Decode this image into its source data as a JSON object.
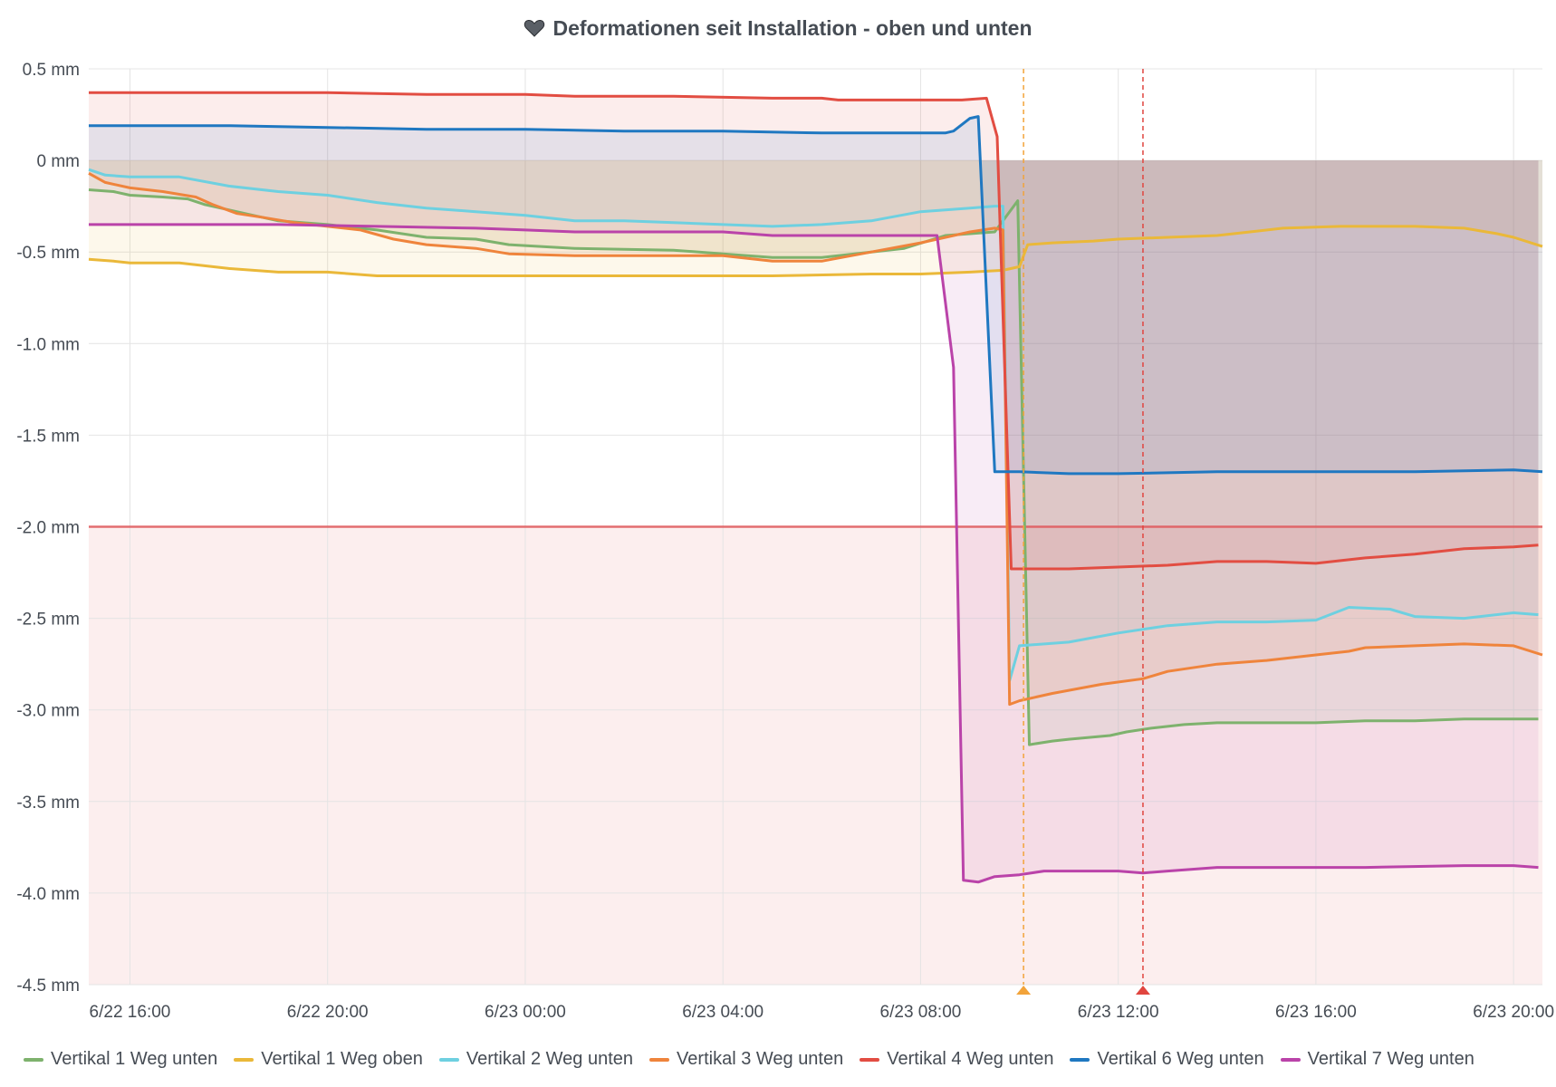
{
  "panel": {
    "title": "Deformationen seit Installation - oben und unten",
    "title_icon": "heart-icon"
  },
  "chart_data": {
    "type": "line",
    "y_unit": "mm",
    "ylim": [
      -4.5,
      0.5
    ],
    "yticks": [
      0.5,
      0,
      -0.5,
      -1.0,
      -1.5,
      -2.0,
      -2.5,
      -3.0,
      -3.5,
      -4.0,
      -4.5
    ],
    "ytick_labels": [
      "0.5 mm",
      "0 mm",
      "-0.5 mm",
      "-1.0 mm",
      "-1.5 mm",
      "-2.0 mm",
      "-2.5 mm",
      "-3.0 mm",
      "-3.5 mm",
      "-4.0 mm",
      "-4.5 mm"
    ],
    "xlim": [
      "2022-06-22T15:10",
      "2022-06-23T20:35"
    ],
    "xticks": [
      "2022-06-22T16:00",
      "2022-06-22T20:00",
      "2022-06-23T00:00",
      "2022-06-23T04:00",
      "2022-06-23T08:00",
      "2022-06-23T12:00",
      "2022-06-23T16:00",
      "2022-06-23T20:00"
    ],
    "xtick_labels": [
      "6/22 16:00",
      "6/22 20:00",
      "6/23 00:00",
      "6/23 04:00",
      "6/23 08:00",
      "6/23 12:00",
      "6/23 16:00",
      "6/23 20:00"
    ],
    "grid": true,
    "legend_position": "bottom",
    "threshold": {
      "value": -2.0,
      "color": "#e0585a"
    },
    "annotations": [
      {
        "time": "2022-06-23T10:05",
        "color": "#f2a33a"
      },
      {
        "time": "2022-06-23T12:30",
        "color": "#e0453f"
      }
    ],
    "series": [
      {
        "name": "Vertikal 1 Weg unten",
        "color": "#7eb26d",
        "points": [
          [
            "2022-06-22T15:10",
            -0.16
          ],
          [
            "2022-06-22T15:40",
            -0.17
          ],
          [
            "2022-06-22T16:00",
            -0.19
          ],
          [
            "2022-06-22T16:40",
            -0.2
          ],
          [
            "2022-06-22T17:10",
            -0.21
          ],
          [
            "2022-06-22T17:30",
            -0.24
          ],
          [
            "2022-06-22T18:00",
            -0.27
          ],
          [
            "2022-06-22T18:30",
            -0.3
          ],
          [
            "2022-06-22T19:00",
            -0.33
          ],
          [
            "2022-06-22T20:00",
            -0.35
          ],
          [
            "2022-06-22T21:00",
            -0.38
          ],
          [
            "2022-06-22T22:00",
            -0.42
          ],
          [
            "2022-06-22T23:00",
            -0.43
          ],
          [
            "2022-06-22T23:40",
            -0.46
          ],
          [
            "2022-06-23T01:00",
            -0.48
          ],
          [
            "2022-06-23T03:00",
            -0.49
          ],
          [
            "2022-06-23T04:00",
            -0.51
          ],
          [
            "2022-06-23T05:00",
            -0.53
          ],
          [
            "2022-06-23T06:00",
            -0.53
          ],
          [
            "2022-06-23T07:00",
            -0.5
          ],
          [
            "2022-06-23T07:40",
            -0.48
          ],
          [
            "2022-06-23T08:30",
            -0.41
          ],
          [
            "2022-06-23T09:30",
            -0.39
          ],
          [
            "2022-06-23T09:58",
            -0.22
          ],
          [
            "2022-06-23T10:12",
            -3.19
          ],
          [
            "2022-06-23T10:40",
            -3.17
          ],
          [
            "2022-06-23T11:00",
            -3.16
          ],
          [
            "2022-06-23T11:50",
            -3.14
          ],
          [
            "2022-06-23T12:10",
            -3.12
          ],
          [
            "2022-06-23T12:40",
            -3.1
          ],
          [
            "2022-06-23T13:20",
            -3.08
          ],
          [
            "2022-06-23T14:00",
            -3.07
          ],
          [
            "2022-06-23T15:00",
            -3.07
          ],
          [
            "2022-06-23T16:00",
            -3.07
          ],
          [
            "2022-06-23T17:00",
            -3.06
          ],
          [
            "2022-06-23T18:00",
            -3.06
          ],
          [
            "2022-06-23T19:00",
            -3.05
          ],
          [
            "2022-06-23T20:00",
            -3.05
          ],
          [
            "2022-06-23T20:30",
            -3.05
          ]
        ]
      },
      {
        "name": "Vertikal 1 Weg oben",
        "color": "#eab839",
        "points": [
          [
            "2022-06-22T15:10",
            -0.54
          ],
          [
            "2022-06-22T15:40",
            -0.55
          ],
          [
            "2022-06-22T16:00",
            -0.56
          ],
          [
            "2022-06-22T17:00",
            -0.56
          ],
          [
            "2022-06-22T18:00",
            -0.59
          ],
          [
            "2022-06-22T19:00",
            -0.61
          ],
          [
            "2022-06-22T20:00",
            -0.61
          ],
          [
            "2022-06-22T21:00",
            -0.63
          ],
          [
            "2022-06-22T23:00",
            -0.63
          ],
          [
            "2022-06-23T02:00",
            -0.63
          ],
          [
            "2022-06-23T05:00",
            -0.63
          ],
          [
            "2022-06-23T07:00",
            -0.62
          ],
          [
            "2022-06-23T08:00",
            -0.62
          ],
          [
            "2022-06-23T09:00",
            -0.61
          ],
          [
            "2022-06-23T09:40",
            -0.6
          ],
          [
            "2022-06-23T10:00",
            -0.58
          ],
          [
            "2022-06-23T10:10",
            -0.46
          ],
          [
            "2022-06-23T10:40",
            -0.45
          ],
          [
            "2022-06-23T11:30",
            -0.44
          ],
          [
            "2022-06-23T12:00",
            -0.43
          ],
          [
            "2022-06-23T13:00",
            -0.42
          ],
          [
            "2022-06-23T14:00",
            -0.41
          ],
          [
            "2022-06-23T14:40",
            -0.39
          ],
          [
            "2022-06-23T15:20",
            -0.37
          ],
          [
            "2022-06-23T16:30",
            -0.36
          ],
          [
            "2022-06-23T17:00",
            -0.36
          ],
          [
            "2022-06-23T18:00",
            -0.36
          ],
          [
            "2022-06-23T19:00",
            -0.37
          ],
          [
            "2022-06-23T19:40",
            -0.4
          ],
          [
            "2022-06-23T20:00",
            -0.42
          ],
          [
            "2022-06-23T20:35",
            -0.47
          ]
        ]
      },
      {
        "name": "Vertikal 2 Weg unten",
        "color": "#6ed0e0",
        "points": [
          [
            "2022-06-22T15:10",
            -0.05
          ],
          [
            "2022-06-22T15:30",
            -0.08
          ],
          [
            "2022-06-22T16:00",
            -0.09
          ],
          [
            "2022-06-22T17:00",
            -0.09
          ],
          [
            "2022-06-22T18:00",
            -0.14
          ],
          [
            "2022-06-22T19:00",
            -0.17
          ],
          [
            "2022-06-22T20:00",
            -0.19
          ],
          [
            "2022-06-22T21:00",
            -0.23
          ],
          [
            "2022-06-22T22:00",
            -0.26
          ],
          [
            "2022-06-22T23:00",
            -0.28
          ],
          [
            "2022-06-23T00:00",
            -0.3
          ],
          [
            "2022-06-23T01:00",
            -0.33
          ],
          [
            "2022-06-23T02:00",
            -0.33
          ],
          [
            "2022-06-23T03:00",
            -0.34
          ],
          [
            "2022-06-23T04:00",
            -0.35
          ],
          [
            "2022-06-23T05:00",
            -0.36
          ],
          [
            "2022-06-23T06:00",
            -0.35
          ],
          [
            "2022-06-23T07:00",
            -0.33
          ],
          [
            "2022-06-23T08:00",
            -0.28
          ],
          [
            "2022-06-23T09:00",
            -0.26
          ],
          [
            "2022-06-23T09:30",
            -0.25
          ],
          [
            "2022-06-23T09:40",
            -0.25
          ],
          [
            "2022-06-23T09:48",
            -2.84
          ],
          [
            "2022-06-23T10:00",
            -2.65
          ],
          [
            "2022-06-23T11:00",
            -2.63
          ],
          [
            "2022-06-23T12:00",
            -2.58
          ],
          [
            "2022-06-23T13:00",
            -2.54
          ],
          [
            "2022-06-23T14:00",
            -2.52
          ],
          [
            "2022-06-23T15:00",
            -2.52
          ],
          [
            "2022-06-23T16:00",
            -2.51
          ],
          [
            "2022-06-23T16:40",
            -2.44
          ],
          [
            "2022-06-23T17:30",
            -2.45
          ],
          [
            "2022-06-23T18:00",
            -2.49
          ],
          [
            "2022-06-23T19:00",
            -2.5
          ],
          [
            "2022-06-23T20:00",
            -2.47
          ],
          [
            "2022-06-23T20:30",
            -2.48
          ]
        ]
      },
      {
        "name": "Vertikal 3 Weg unten",
        "color": "#ef843c",
        "points": [
          [
            "2022-06-22T15:10",
            -0.07
          ],
          [
            "2022-06-22T15:30",
            -0.12
          ],
          [
            "2022-06-22T16:00",
            -0.15
          ],
          [
            "2022-06-22T16:40",
            -0.17
          ],
          [
            "2022-06-22T17:20",
            -0.2
          ],
          [
            "2022-06-22T17:40",
            -0.24
          ],
          [
            "2022-06-22T18:10",
            -0.29
          ],
          [
            "2022-06-22T18:40",
            -0.31
          ],
          [
            "2022-06-22T19:20",
            -0.34
          ],
          [
            "2022-06-22T20:00",
            -0.36
          ],
          [
            "2022-06-22T20:40",
            -0.38
          ],
          [
            "2022-06-22T21:20",
            -0.43
          ],
          [
            "2022-06-22T22:00",
            -0.46
          ],
          [
            "2022-06-22T23:00",
            -0.48
          ],
          [
            "2022-06-22T23:40",
            -0.51
          ],
          [
            "2022-06-23T01:00",
            -0.52
          ],
          [
            "2022-06-23T03:00",
            -0.52
          ],
          [
            "2022-06-23T04:00",
            -0.52
          ],
          [
            "2022-06-23T05:00",
            -0.55
          ],
          [
            "2022-06-23T06:00",
            -0.55
          ],
          [
            "2022-06-23T07:00",
            -0.5
          ],
          [
            "2022-06-23T08:00",
            -0.45
          ],
          [
            "2022-06-23T09:00",
            -0.39
          ],
          [
            "2022-06-23T09:30",
            -0.37
          ],
          [
            "2022-06-23T09:40",
            -0.38
          ],
          [
            "2022-06-23T09:48",
            -2.97
          ],
          [
            "2022-06-23T10:00",
            -2.95
          ],
          [
            "2022-06-23T10:40",
            -2.91
          ],
          [
            "2022-06-23T11:40",
            -2.86
          ],
          [
            "2022-06-23T12:30",
            -2.83
          ],
          [
            "2022-06-23T13:00",
            -2.79
          ],
          [
            "2022-06-23T14:00",
            -2.75
          ],
          [
            "2022-06-23T15:00",
            -2.73
          ],
          [
            "2022-06-23T16:00",
            -2.7
          ],
          [
            "2022-06-23T16:40",
            -2.68
          ],
          [
            "2022-06-23T17:00",
            -2.66
          ],
          [
            "2022-06-23T18:00",
            -2.65
          ],
          [
            "2022-06-23T19:00",
            -2.64
          ],
          [
            "2022-06-23T20:00",
            -2.65
          ],
          [
            "2022-06-23T20:35",
            -2.7
          ]
        ]
      },
      {
        "name": "Vertikal 4 Weg unten",
        "color": "#e24d42",
        "points": [
          [
            "2022-06-22T15:10",
            0.37
          ],
          [
            "2022-06-22T17:00",
            0.37
          ],
          [
            "2022-06-22T20:00",
            0.37
          ],
          [
            "2022-06-22T22:00",
            0.36
          ],
          [
            "2022-06-23T00:00",
            0.36
          ],
          [
            "2022-06-23T01:00",
            0.35
          ],
          [
            "2022-06-23T03:00",
            0.35
          ],
          [
            "2022-06-23T05:00",
            0.34
          ],
          [
            "2022-06-23T06:00",
            0.34
          ],
          [
            "2022-06-23T06:20",
            0.33
          ],
          [
            "2022-06-23T08:00",
            0.33
          ],
          [
            "2022-06-23T08:50",
            0.33
          ],
          [
            "2022-06-23T09:20",
            0.34
          ],
          [
            "2022-06-23T09:33",
            0.13
          ],
          [
            "2022-06-23T09:50",
            -2.23
          ],
          [
            "2022-06-23T11:00",
            -2.23
          ],
          [
            "2022-06-23T12:00",
            -2.22
          ],
          [
            "2022-06-23T13:00",
            -2.21
          ],
          [
            "2022-06-23T14:00",
            -2.19
          ],
          [
            "2022-06-23T15:00",
            -2.19
          ],
          [
            "2022-06-23T16:00",
            -2.2
          ],
          [
            "2022-06-23T17:00",
            -2.17
          ],
          [
            "2022-06-23T18:00",
            -2.15
          ],
          [
            "2022-06-23T19:00",
            -2.12
          ],
          [
            "2022-06-23T20:00",
            -2.11
          ],
          [
            "2022-06-23T20:30",
            -2.1
          ]
        ]
      },
      {
        "name": "Vertikal 6 Weg unten",
        "color": "#1f78c1",
        "points": [
          [
            "2022-06-22T15:10",
            0.19
          ],
          [
            "2022-06-22T16:00",
            0.19
          ],
          [
            "2022-06-22T18:00",
            0.19
          ],
          [
            "2022-06-22T20:00",
            0.18
          ],
          [
            "2022-06-22T22:00",
            0.17
          ],
          [
            "2022-06-23T00:00",
            0.17
          ],
          [
            "2022-06-23T02:00",
            0.16
          ],
          [
            "2022-06-23T04:00",
            0.16
          ],
          [
            "2022-06-23T06:00",
            0.15
          ],
          [
            "2022-06-23T08:00",
            0.15
          ],
          [
            "2022-06-23T08:30",
            0.15
          ],
          [
            "2022-06-23T08:40",
            0.16
          ],
          [
            "2022-06-23T09:00",
            0.23
          ],
          [
            "2022-06-23T09:10",
            0.24
          ],
          [
            "2022-06-23T09:30",
            -1.7
          ],
          [
            "2022-06-23T10:00",
            -1.7
          ],
          [
            "2022-06-23T11:00",
            -1.71
          ],
          [
            "2022-06-23T12:00",
            -1.71
          ],
          [
            "2022-06-23T14:00",
            -1.7
          ],
          [
            "2022-06-23T16:00",
            -1.7
          ],
          [
            "2022-06-23T18:00",
            -1.7
          ],
          [
            "2022-06-23T20:00",
            -1.69
          ],
          [
            "2022-06-23T20:35",
            -1.7
          ]
        ]
      },
      {
        "name": "Vertikal 7 Weg unten",
        "color": "#ba43a9",
        "points": [
          [
            "2022-06-22T15:10",
            -0.35
          ],
          [
            "2022-06-22T17:00",
            -0.35
          ],
          [
            "2022-06-22T19:00",
            -0.35
          ],
          [
            "2022-06-22T21:00",
            -0.36
          ],
          [
            "2022-06-22T23:00",
            -0.37
          ],
          [
            "2022-06-23T00:00",
            -0.38
          ],
          [
            "2022-06-23T01:00",
            -0.39
          ],
          [
            "2022-06-23T04:00",
            -0.39
          ],
          [
            "2022-06-23T05:00",
            -0.41
          ],
          [
            "2022-06-23T07:00",
            -0.41
          ],
          [
            "2022-06-23T08:00",
            -0.41
          ],
          [
            "2022-06-23T08:20",
            -0.41
          ],
          [
            "2022-06-23T08:40",
            -1.13
          ],
          [
            "2022-06-23T08:52",
            -3.93
          ],
          [
            "2022-06-23T09:10",
            -3.94
          ],
          [
            "2022-06-23T09:30",
            -3.91
          ],
          [
            "2022-06-23T10:00",
            -3.9
          ],
          [
            "2022-06-23T10:30",
            -3.88
          ],
          [
            "2022-06-23T11:30",
            -3.88
          ],
          [
            "2022-06-23T12:00",
            -3.88
          ],
          [
            "2022-06-23T12:30",
            -3.89
          ],
          [
            "2022-06-23T13:00",
            -3.88
          ],
          [
            "2022-06-23T14:00",
            -3.86
          ],
          [
            "2022-06-23T15:00",
            -3.86
          ],
          [
            "2022-06-23T17:00",
            -3.86
          ],
          [
            "2022-06-23T19:00",
            -3.85
          ],
          [
            "2022-06-23T20:00",
            -3.85
          ],
          [
            "2022-06-23T20:30",
            -3.86
          ]
        ]
      }
    ]
  }
}
